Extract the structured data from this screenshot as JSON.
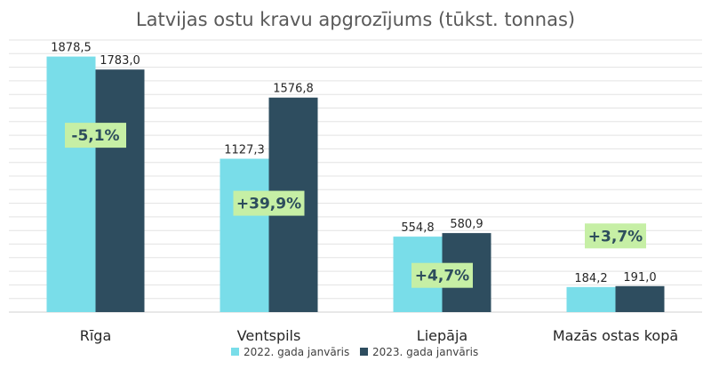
{
  "chart_data": {
    "type": "bar",
    "title": "Latvijas ostu kravu apgrozījums (tūkst. tonnas)",
    "categories": [
      "Rīga",
      "Ventspils",
      "Liepāja",
      "Mazās ostas kopā"
    ],
    "series": [
      {
        "name": "2022. gada janvāris",
        "values": [
          1878.5,
          1127.3,
          554.8,
          184.2
        ],
        "labels": [
          "1878,5",
          "1127,3",
          "554,8",
          "184,2"
        ],
        "color": "#79dde9"
      },
      {
        "name": "2023. gada janvāris",
        "values": [
          1783.0,
          1576.8,
          580.9,
          191.0
        ],
        "labels": [
          "1783,0",
          "1576,8",
          "580,9",
          "191,0"
        ],
        "color": "#2e4d5f"
      }
    ],
    "annotations": [
      "-5,1%",
      "+39,9%",
      "+4,7%",
      "+3,7%"
    ],
    "annotation_color": "#c6efa5",
    "ylim": [
      0,
      2000
    ],
    "grid": true,
    "legend": "bottom"
  }
}
